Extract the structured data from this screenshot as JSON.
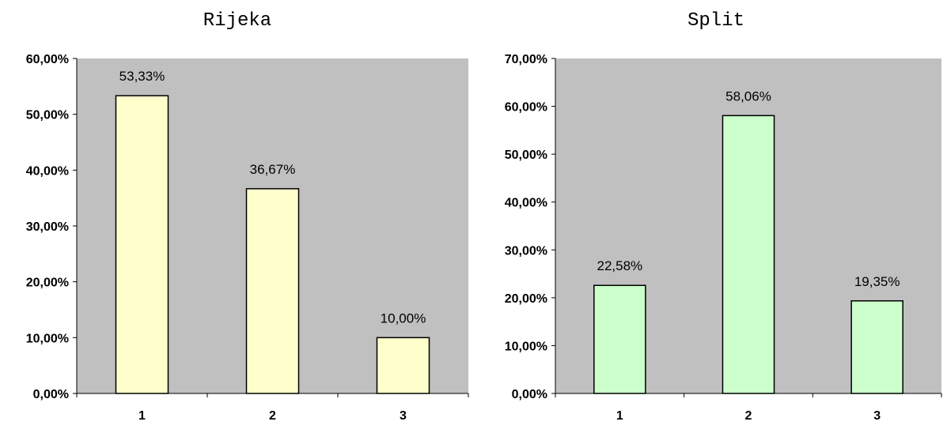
{
  "chart_data": [
    {
      "type": "bar",
      "title": "Rijeka",
      "categories": [
        "1",
        "2",
        "3"
      ],
      "values": [
        53.33,
        36.67,
        10.0
      ],
      "value_labels": [
        "53,33%",
        "36,67%",
        "10,00%"
      ],
      "ylim": [
        0,
        60
      ],
      "yticks": [
        0,
        10,
        20,
        30,
        40,
        50,
        60
      ],
      "ytick_labels": [
        "0,00%",
        "10,00%",
        "20,00%",
        "30,00%",
        "40,00%",
        "50,00%",
        "60,00%"
      ],
      "xlabel": "",
      "ylabel": "",
      "grid": false,
      "plot_bg_color": "#c0c0c0",
      "bar_color": "#ffffcc"
    },
    {
      "type": "bar",
      "title": "Split",
      "categories": [
        "1",
        "2",
        "3"
      ],
      "values": [
        22.58,
        58.06,
        19.35
      ],
      "value_labels": [
        "22,58%",
        "58,06%",
        "19,35%"
      ],
      "ylim": [
        0,
        70
      ],
      "yticks": [
        0,
        10,
        20,
        30,
        40,
        50,
        60,
        70
      ],
      "ytick_labels": [
        "0,00%",
        "10,00%",
        "20,00%",
        "30,00%",
        "40,00%",
        "50,00%",
        "60,00%",
        "70,00%"
      ],
      "xlabel": "",
      "ylabel": "",
      "grid": false,
      "plot_bg_color": "#c0c0c0",
      "bar_color": "#ccffcc"
    }
  ]
}
